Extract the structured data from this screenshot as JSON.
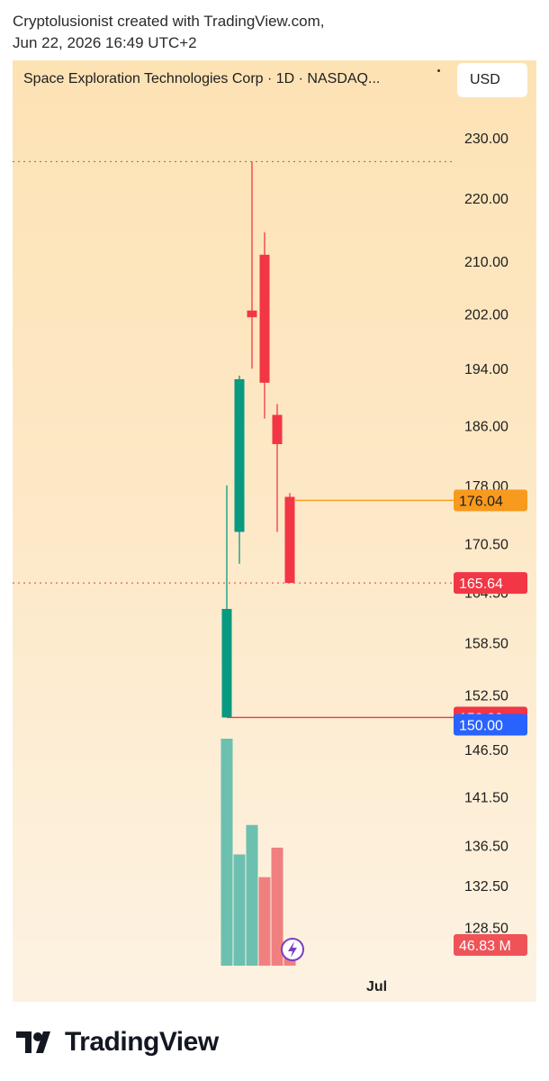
{
  "header": {
    "line1": "Cryptolusionist created with TradingView.com,",
    "line2": "Jun 22, 2026 16:49 UTC+2"
  },
  "symbol": "Space Exploration Technologies Corp · 1D · NASDAQ...",
  "currency": "USD",
  "brand": "TradingView",
  "colors": {
    "up": "#089981",
    "down": "#f23645",
    "vol_up": "#6cc0b0",
    "vol_down": "#f08080",
    "last": "#f89a1e",
    "blue": "#2962ff"
  },
  "chart_data": {
    "type": "candlestick",
    "interval": "1D",
    "price_axis": {
      "ticks": [
        "230.00",
        "220.00",
        "210.00",
        "202.00",
        "194.00",
        "186.00",
        "178.00",
        "170.50",
        "164.50",
        "158.50",
        "152.50",
        "146.50",
        "141.50",
        "136.50",
        "132.50",
        "128.50"
      ],
      "scale": "log"
    },
    "time_axis": {
      "labels": [
        "Jul"
      ]
    },
    "candles": [
      {
        "o": 150.0,
        "h": 178.0,
        "l": 150.0,
        "c": 162.5
      },
      {
        "o": 172.0,
        "h": 193.0,
        "l": 168.0,
        "c": 192.5
      },
      {
        "o": 202.5,
        "h": 226.0,
        "l": 194.0,
        "c": 201.5
      },
      {
        "o": 211.0,
        "h": 214.5,
        "l": 187.0,
        "c": 192.0
      },
      {
        "o": 187.5,
        "h": 189.0,
        "l": 172.0,
        "c": 183.5
      },
      {
        "o": 176.5,
        "h": 177.0,
        "l": 165.64,
        "c": 165.64
      }
    ],
    "volume": [
      {
        "dir": "up",
        "rel": 1.0
      },
      {
        "dir": "up",
        "rel": 0.49
      },
      {
        "dir": "up",
        "rel": 0.62
      },
      {
        "dir": "down",
        "rel": 0.39
      },
      {
        "dir": "down",
        "rel": 0.52
      },
      {
        "dir": "down",
        "rel": 0.08
      }
    ],
    "price_lines": [
      {
        "label": "176.04",
        "value": 176.04,
        "style": "solid",
        "color": "#f89a1e",
        "text_color": "#1e1e1e"
      },
      {
        "label": "165.64",
        "value": 165.64,
        "style": "dotted",
        "color": "#f23645",
        "text_color": "#ffffff"
      },
      {
        "label": "150.00",
        "value": 150.0,
        "style": "solid",
        "color": "#f23645",
        "text_color": "#ffffff"
      },
      {
        "label": "150.00",
        "value": 149.2,
        "style": "none",
        "color": "#2962ff",
        "text_color": "#ffffff"
      }
    ],
    "high_line": {
      "value": 226.0,
      "style": "dotted"
    },
    "volume_label": "46.83 M"
  }
}
